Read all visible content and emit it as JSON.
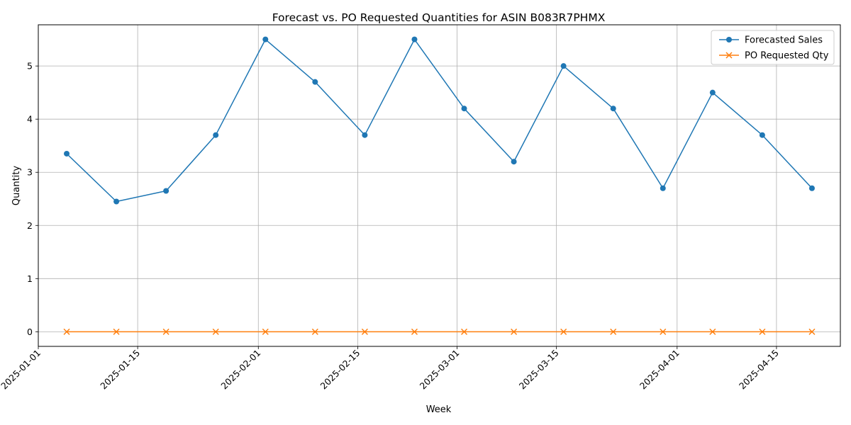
{
  "chart_data": {
    "type": "line",
    "title": "Forecast vs. PO Requested Quantities for ASIN B083R7PHMX",
    "xlabel": "Week",
    "ylabel": "Quantity",
    "x": [
      "2025-01-05",
      "2025-01-12",
      "2025-01-19",
      "2025-01-26",
      "2025-02-02",
      "2025-02-09",
      "2025-02-16",
      "2025-02-23",
      "2025-03-02",
      "2025-03-09",
      "2025-03-16",
      "2025-03-23",
      "2025-03-30",
      "2025-04-06",
      "2025-04-13",
      "2025-04-20"
    ],
    "series": [
      {
        "name": "Forecasted Sales",
        "color": "#1f77b4",
        "marker": "circle",
        "values": [
          3.35,
          2.45,
          2.65,
          3.7,
          5.5,
          4.7,
          3.7,
          5.5,
          4.2,
          3.2,
          5.0,
          4.2,
          2.7,
          4.5,
          3.7,
          2.7
        ]
      },
      {
        "name": "PO Requested Qty",
        "color": "#ff7f0e",
        "marker": "x",
        "values": [
          0,
          0,
          0,
          0,
          0,
          0,
          0,
          0,
          0,
          0,
          0,
          0,
          0,
          0,
          0,
          0
        ]
      }
    ],
    "x_ticks": [
      "2025-01-01",
      "2025-01-15",
      "2025-02-01",
      "2025-02-15",
      "2025-03-01",
      "2025-03-15",
      "2025-04-01",
      "2025-04-15"
    ],
    "y_ticks": [
      "0",
      "1",
      "2",
      "3",
      "4",
      "5"
    ],
    "xlim": [
      "2025-01-01",
      "2025-04-24"
    ],
    "ylim": [
      -0.275,
      5.775
    ],
    "grid": true,
    "legend_position": "top-right"
  }
}
